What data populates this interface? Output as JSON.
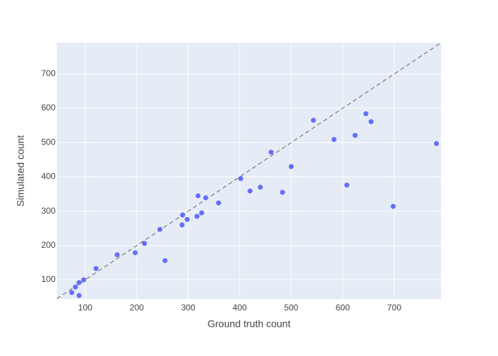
{
  "chart_data": {
    "type": "scatter",
    "x_label": "Ground truth count",
    "y_label": "Simulated count",
    "xlim": [
      45,
      791
    ],
    "ylim": [
      44,
      791
    ],
    "xticks": [
      100,
      200,
      300,
      400,
      500,
      600,
      700
    ],
    "yticks": [
      100,
      200,
      300,
      400,
      500,
      600,
      700
    ],
    "grid": true,
    "series": [
      {
        "color": "#636efa",
        "x": [
          74,
          81,
          88,
          88,
          97,
          121,
          162,
          197,
          215,
          245,
          255,
          288,
          289,
          298,
          317,
          319,
          326,
          334,
          359,
          402,
          420,
          440,
          461,
          483,
          500,
          543,
          583,
          608,
          624,
          645,
          655,
          698,
          782
        ],
        "values": [
          63,
          79,
          92,
          54,
          100,
          133,
          173,
          179,
          206,
          247,
          156,
          260,
          289,
          276,
          285,
          345,
          295,
          339,
          324,
          395,
          359,
          370,
          472,
          355,
          430,
          565,
          509,
          376,
          521,
          584,
          561,
          314,
          497
        ]
      }
    ],
    "reference_line": {
      "x": [
        45,
        791
      ],
      "y": [
        45,
        791
      ],
      "color": "#444",
      "dashed": true
    }
  }
}
